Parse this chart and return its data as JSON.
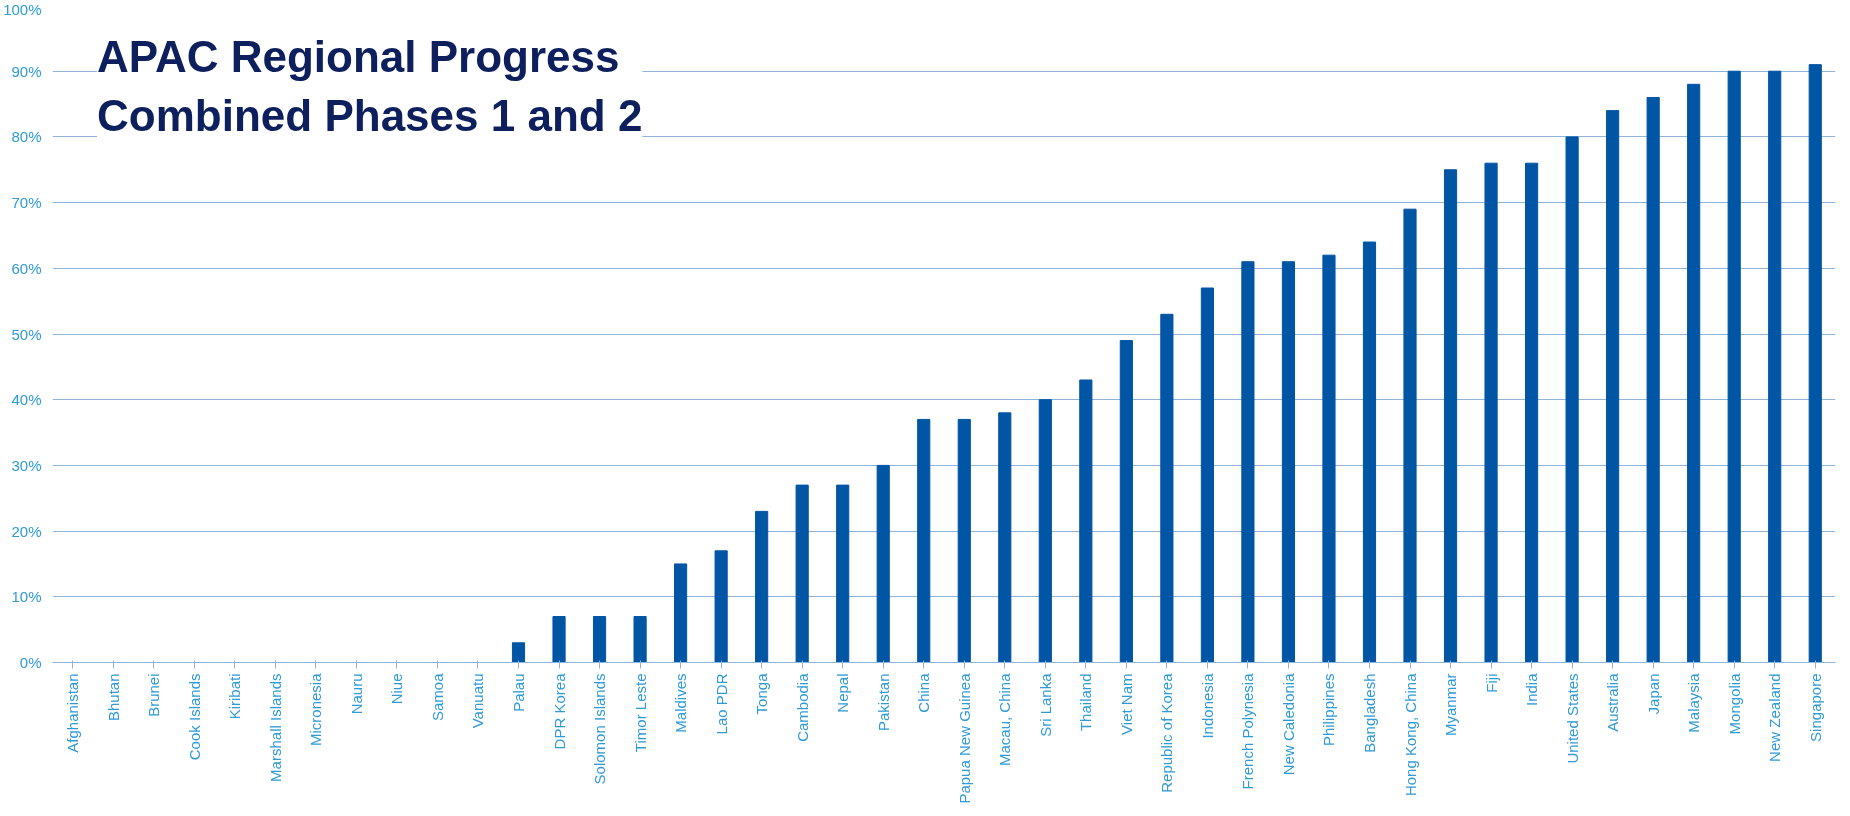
{
  "chart_data": {
    "type": "bar",
    "title": "APAC Regional Progress\nCombined Phases 1 and 2",
    "categories": [
      "Afghanistan",
      "Bhutan",
      "Brunei",
      "Cook Islands",
      "Kiribati",
      "Marshall Islands",
      "Micronesia",
      "Nauru",
      "Niue",
      "Samoa",
      "Vanuatu",
      "Palau",
      "DPR Korea",
      "Solomon Islands",
      "Timor Leste",
      "Maldives",
      "Lao PDR",
      "Tonga",
      "Cambodia",
      "Nepal",
      "Pakistan",
      "China",
      "Papua New Guinea",
      "Macau, China",
      "Sri Lanka",
      "Thailand",
      "Viet Nam",
      "Republic of Korea",
      "Indonesia",
      "French Polynesia",
      "New Caledonia",
      "Philippines",
      "Bangladesh",
      "Hong Kong, China",
      "Myanmar",
      "Fiji",
      "India",
      "United States",
      "Australia",
      "Japan",
      "Malaysia",
      "Mongolia",
      "New Zealand",
      "Singapore"
    ],
    "values": [
      0,
      0,
      0,
      0,
      0,
      0,
      0,
      0,
      0,
      0,
      0,
      3,
      7,
      7,
      7,
      15,
      17,
      23,
      27,
      27,
      30,
      37,
      37,
      38,
      40,
      43,
      49,
      53,
      57,
      61,
      61,
      62,
      64,
      69,
      75,
      76,
      76,
      80,
      84,
      86,
      88,
      90,
      90,
      91
    ],
    "color": "#0055a5",
    "ylim": [
      0,
      100
    ],
    "yticks": [
      {
        "value": 0,
        "label": "0%"
      },
      {
        "value": 10,
        "label": "10%"
      },
      {
        "value": 20,
        "label": "20%"
      },
      {
        "value": 30,
        "label": "30%"
      },
      {
        "value": 40,
        "label": "40%"
      },
      {
        "value": 50,
        "label": "50%"
      },
      {
        "value": 60,
        "label": "60%"
      },
      {
        "value": 70,
        "label": "70%"
      },
      {
        "value": 80,
        "label": "80%"
      },
      {
        "value": 90,
        "label": "90%"
      },
      {
        "value": 100,
        "label": "100%"
      }
    ],
    "grid": "y"
  }
}
